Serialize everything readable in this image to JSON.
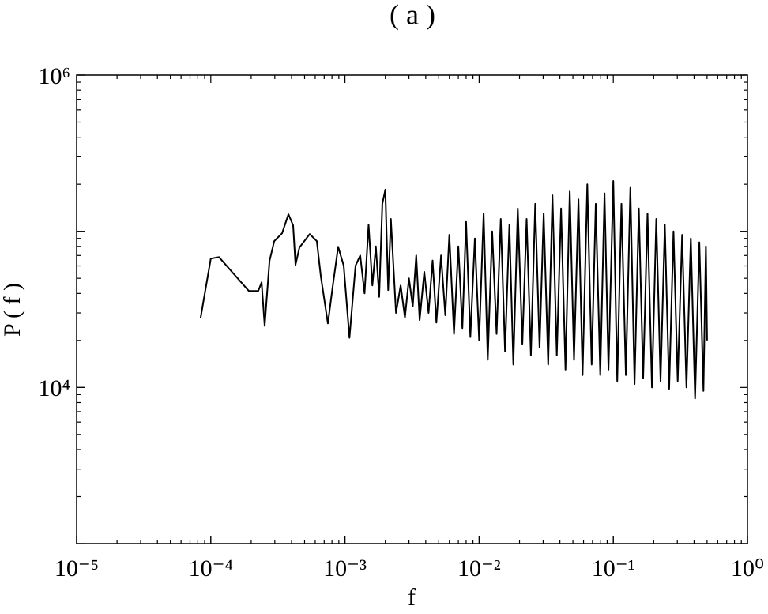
{
  "chart_data": {
    "type": "line",
    "title": "( a )",
    "x_label": "f",
    "y_label": "P ( f )",
    "log_x": true,
    "log_y": true,
    "xlim": [
      1e-05,
      1
    ],
    "ylim": [
      1000,
      1000000
    ],
    "xticks": [
      {
        "value": 1e-05,
        "label": "10⁻⁵"
      },
      {
        "value": 0.0001,
        "label": "10⁻⁴"
      },
      {
        "value": 0.001,
        "label": "10⁻³"
      },
      {
        "value": 0.01,
        "label": "10⁻²"
      },
      {
        "value": 0.1,
        "label": "10⁻¹"
      },
      {
        "value": 1,
        "label": "10⁰"
      }
    ],
    "yticks": [
      {
        "value": 10000,
        "label": "10⁴"
      },
      {
        "value": 1000000,
        "label": "10⁶"
      }
    ],
    "x": [
      8.4e-05,
      0.0001,
      0.000115,
      0.000151,
      0.000192,
      0.000226,
      0.000239,
      0.000252,
      0.000274,
      0.000297,
      0.00034,
      0.000379,
      0.000411,
      0.000428,
      0.000458,
      0.000546,
      0.000617,
      0.00066,
      0.000746,
      0.000809,
      0.00089,
      0.000979,
      0.00108,
      0.0012,
      0.0013,
      0.0014,
      0.0015,
      0.0016,
      0.0017,
      0.0018,
      0.0019,
      0.002,
      0.0021,
      0.0022,
      0.0024,
      0.0026,
      0.0028,
      0.003,
      0.0032,
      0.0034,
      0.0036,
      0.0039,
      0.0042,
      0.0045,
      0.0048,
      0.0052,
      0.0056,
      0.006,
      0.0065,
      0.007,
      0.0075,
      0.008,
      0.0086,
      0.0093,
      0.01,
      0.0108,
      0.0116,
      0.0125,
      0.0135,
      0.0145,
      0.0156,
      0.0168,
      0.018,
      0.0194,
      0.021,
      0.0226,
      0.0243,
      0.0262,
      0.0282,
      0.0303,
      0.0327,
      0.0352,
      0.0379,
      0.0408,
      0.044,
      0.0474,
      0.051,
      0.055,
      0.059,
      0.064,
      0.069,
      0.074,
      0.08,
      0.086,
      0.092,
      0.1,
      0.107,
      0.115,
      0.124,
      0.134,
      0.144,
      0.155,
      0.167,
      0.18,
      0.194,
      0.209,
      0.225,
      0.242,
      0.261,
      0.281,
      0.302,
      0.326,
      0.351,
      0.378,
      0.407,
      0.438,
      0.47,
      0.49,
      0.5
    ],
    "series": [
      {
        "color": "#000000",
        "values": [
          27900,
          66900,
          68400,
          52400,
          41500,
          41500,
          47100,
          24800,
          64600,
          86400,
          97100,
          128500,
          109100,
          60900,
          78700,
          96000,
          86400,
          51700,
          25700,
          44000,
          79600,
          60200,
          20800,
          60200,
          70000,
          40000,
          110000,
          45000,
          80000,
          38000,
          150000,
          185000,
          42000,
          120000,
          30000,
          45000,
          28000,
          50000,
          33000,
          70000,
          27000,
          55000,
          30000,
          65000,
          26000,
          70000,
          29000,
          95000,
          22000,
          80000,
          24000,
          115000,
          21000,
          90000,
          20000,
          130000,
          15000,
          100000,
          22000,
          120000,
          17000,
          110000,
          14000,
          140000,
          19000,
          120000,
          16000,
          150000,
          18000,
          130000,
          14000,
          170000,
          16000,
          140000,
          13000,
          180000,
          15000,
          160000,
          12000,
          200000,
          14000,
          150000,
          12000,
          175000,
          13000,
          210000,
          11000,
          150000,
          12000,
          190000,
          10500,
          140000,
          11500,
          130000,
          10000,
          120000,
          11000,
          110000,
          9800,
          100000,
          11000,
          95000,
          10000,
          90000,
          8500,
          85000,
          9500,
          80000,
          20000
        ]
      }
    ]
  }
}
